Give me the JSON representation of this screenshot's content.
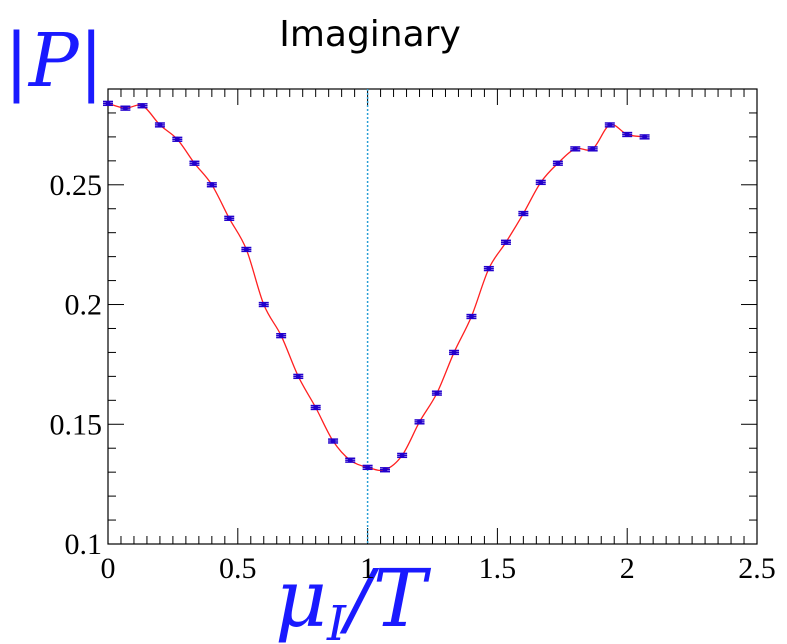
{
  "chart_data": {
    "type": "scatter",
    "title": "Imaginary",
    "ylabel": "|P|",
    "xlabel_main": "μ",
    "xlabel_sub": "I",
    "xlabel_tail": "/T",
    "xlim": [
      0,
      2.5
    ],
    "ylim": [
      0.1,
      0.29
    ],
    "x_ticks": [
      "0",
      "0.5",
      "1",
      "1.5",
      "2",
      "2.5"
    ],
    "y_ticks": [
      "0.1",
      "0.15",
      "0.2",
      "0.25"
    ],
    "grid": false,
    "vertical_line_x": 1.0,
    "colors": {
      "points": "#2200cc",
      "fit_line": "#ff2020",
      "vline": "#2a9fd6",
      "axes": "#000000"
    },
    "series": [
      {
        "x": [
          0.0,
          0.067,
          0.133,
          0.2,
          0.267,
          0.333,
          0.4,
          0.467,
          0.533,
          0.6,
          0.667,
          0.733,
          0.8,
          0.867,
          0.933,
          1.0,
          1.067,
          1.133,
          1.2,
          1.267,
          1.333,
          1.4,
          1.467,
          1.533,
          1.6,
          1.667,
          1.733,
          1.8,
          1.867,
          1.933,
          2.0,
          2.067
        ],
        "y": [
          0.284,
          0.282,
          0.283,
          0.275,
          0.269,
          0.259,
          0.25,
          0.236,
          0.223,
          0.2,
          0.187,
          0.17,
          0.157,
          0.143,
          0.135,
          0.132,
          0.131,
          0.137,
          0.151,
          0.163,
          0.18,
          0.195,
          0.215,
          0.226,
          0.238,
          0.251,
          0.259,
          0.265,
          0.265,
          0.275,
          0.271,
          0.27
        ],
        "yerr": 0.0008
      }
    ]
  }
}
